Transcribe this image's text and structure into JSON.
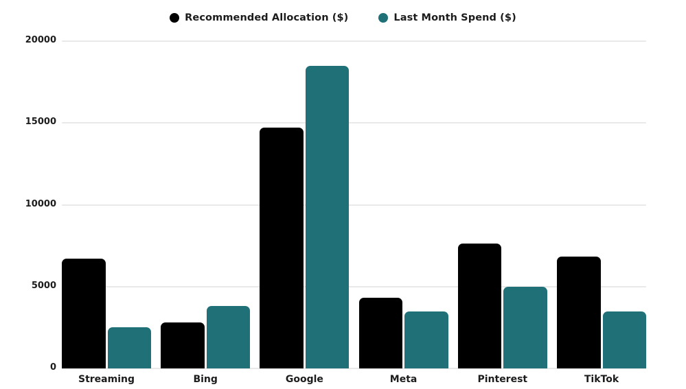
{
  "chart_data": {
    "type": "bar",
    "title": "",
    "xlabel": "",
    "ylabel": "",
    "categories": [
      "Streaming",
      "Bing",
      "Google",
      "Meta",
      "Pinterest",
      "TikTok"
    ],
    "series": [
      {
        "name": "Recommended Allocation ($)",
        "color": "#000000",
        "values": [
          6700,
          2800,
          14700,
          4300,
          7650,
          6850
        ]
      },
      {
        "name": "Last Month Spend ($)",
        "color": "#1f7177",
        "values": [
          2500,
          3800,
          18500,
          3500,
          5000,
          3500
        ]
      }
    ],
    "ylim": [
      0,
      20000
    ],
    "yticks": [
      0,
      5000,
      10000,
      15000,
      20000
    ],
    "grid": true,
    "legend_position": "top-center",
    "colors": {
      "gridline": "#e9e9e9",
      "text": "#1c1c1c",
      "background": "#ffffff"
    }
  }
}
